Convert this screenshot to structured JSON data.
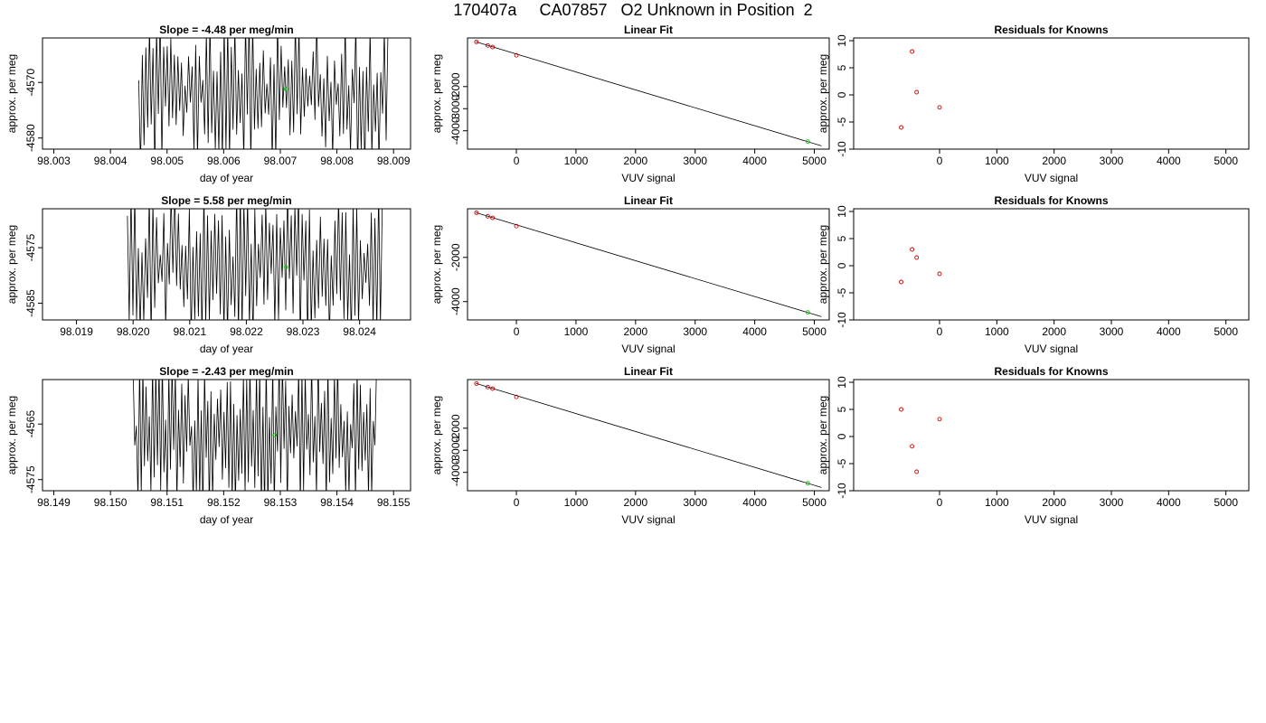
{
  "page_title": "170407a     CA07857   O2 Unknown in Position  2",
  "colors": {
    "known_marker": "#cc0000",
    "unknown_marker": "#00cc00",
    "line": "#000000"
  },
  "chart_data": [
    {
      "type": "line",
      "title": "Slope =  -4.48  per meg/min",
      "xlabel": "day of year",
      "ylabel": "approx. per meg",
      "xlim": [
        98.0028,
        98.0093
      ],
      "ylim": [
        -4582,
        -4562
      ],
      "xticks": [
        98.003,
        98.004,
        98.005,
        98.006,
        98.007,
        98.008,
        98.009
      ],
      "xtick_labels": [
        "98.003",
        "98.004",
        "98.005",
        "98.006",
        "98.007",
        "98.008",
        "98.009"
      ],
      "yticks": [
        -4570,
        -4580
      ],
      "ytick_labels": [
        "-4570",
        "-4580"
      ],
      "trace_start": 98.0045,
      "trace_end": 98.0089,
      "trace_segments": 140,
      "unknown_point": {
        "x": 98.0071,
        "y": -4571.2
      }
    },
    {
      "type": "scatter",
      "title": "Linear Fit",
      "xlabel": "VUV signal",
      "ylabel": "approx. per meg",
      "xlim": [
        -820,
        5250
      ],
      "ylim": [
        -4830,
        200
      ],
      "xticks": [
        0,
        1000,
        2000,
        3000,
        4000,
        5000
      ],
      "xtick_labels": [
        "0",
        "1000",
        "2000",
        "3000",
        "4000",
        "5000"
      ],
      "yticks": [
        -2000,
        -3000,
        -4000
      ],
      "ytick_labels": [
        "-2000",
        "-3000",
        "-4000"
      ],
      "fit_line": {
        "x": [
          -680,
          5120
        ],
        "y": [
          25,
          -4680
        ]
      },
      "knowns": {
        "x": [
          -670,
          -480,
          -400,
          0
        ],
        "y": [
          20,
          -140,
          -210,
          -585
        ]
      },
      "unknown": {
        "x": [
          4890
        ],
        "y": [
          -4490
        ]
      }
    },
    {
      "type": "scatter",
      "title": "Residuals for Knowns",
      "xlabel": "VUV signal",
      "ylabel": "approx. per meg",
      "xlim": [
        -1500,
        5400
      ],
      "ylim": [
        -10,
        10.5
      ],
      "xticks": [
        0,
        1000,
        2000,
        3000,
        4000,
        5000
      ],
      "xtick_labels": [
        "0",
        "1000",
        "2000",
        "3000",
        "4000",
        "5000"
      ],
      "yticks": [
        10,
        5,
        0,
        -5,
        -10
      ],
      "ytick_labels": [
        "10",
        "5",
        "0",
        "-5",
        "-10"
      ],
      "knowns": {
        "x": [
          -670,
          -480,
          -400,
          0
        ],
        "y": [
          -6.0,
          8.0,
          0.5,
          -2.3
        ]
      }
    },
    {
      "type": "line",
      "title": "Slope =  5.58  per meg/min",
      "xlabel": "day of year",
      "ylabel": "approx. per meg",
      "xlim": [
        98.0184,
        98.0249
      ],
      "ylim": [
        -4588,
        -4568
      ],
      "xticks": [
        98.019,
        98.02,
        98.021,
        98.022,
        98.023,
        98.024
      ],
      "xtick_labels": [
        "98.019",
        "98.020",
        "98.021",
        "98.022",
        "98.023",
        "98.024"
      ],
      "yticks": [
        -4575,
        -4585
      ],
      "ytick_labels": [
        "-4575",
        "-4585"
      ],
      "trace_start": 98.0199,
      "trace_end": 98.0244,
      "trace_segments": 140,
      "unknown_point": {
        "x": 98.0227,
        "y": -4578.5
      }
    },
    {
      "type": "scatter",
      "title": "Linear Fit",
      "xlabel": "VUV signal",
      "ylabel": "approx. per meg",
      "xlim": [
        -820,
        5250
      ],
      "ylim": [
        -4830,
        200
      ],
      "xticks": [
        0,
        1000,
        2000,
        3000,
        4000,
        5000
      ],
      "xtick_labels": [
        "0",
        "1000",
        "2000",
        "3000",
        "4000",
        "5000"
      ],
      "yticks": [
        -2000,
        -4000
      ],
      "ytick_labels": [
        "-2000",
        "-4000"
      ],
      "fit_line": {
        "x": [
          -680,
          5120
        ],
        "y": [
          25,
          -4680
        ]
      },
      "knowns": {
        "x": [
          -670,
          -480,
          -400,
          0
        ],
        "y": [
          20,
          -140,
          -210,
          -585
        ]
      },
      "unknown": {
        "x": [
          4890
        ],
        "y": [
          -4490
        ]
      }
    },
    {
      "type": "scatter",
      "title": "Residuals for Knowns",
      "xlabel": "VUV signal",
      "ylabel": "approx. per meg",
      "xlim": [
        -1500,
        5400
      ],
      "ylim": [
        -10,
        10.5
      ],
      "xticks": [
        0,
        1000,
        2000,
        3000,
        4000,
        5000
      ],
      "xtick_labels": [
        "0",
        "1000",
        "2000",
        "3000",
        "4000",
        "5000"
      ],
      "yticks": [
        10,
        5,
        0,
        -5,
        -10
      ],
      "ytick_labels": [
        "10",
        "5",
        "0",
        "-5",
        "-10"
      ],
      "knowns": {
        "x": [
          -670,
          -480,
          -400,
          0
        ],
        "y": [
          -3.0,
          3.0,
          1.5,
          -1.5
        ]
      }
    },
    {
      "type": "line",
      "title": "Slope =  -2.43  per meg/min",
      "xlabel": "day of year",
      "ylabel": "approx. per meg",
      "xlim": [
        98.1488,
        98.1553
      ],
      "ylim": [
        -4577,
        -4557
      ],
      "xticks": [
        98.149,
        98.15,
        98.151,
        98.152,
        98.153,
        98.154,
        98.155
      ],
      "xtick_labels": [
        "98.149",
        "98.150",
        "98.151",
        "98.152",
        "98.153",
        "98.154",
        "98.155"
      ],
      "yticks": [
        -4565,
        -4575
      ],
      "ytick_labels": [
        "-4565",
        "-4575"
      ],
      "trace_start": 98.1504,
      "trace_end": 98.1547,
      "trace_segments": 150,
      "unknown_point": {
        "x": 98.1529,
        "y": -4567.0
      }
    },
    {
      "type": "scatter",
      "title": "Linear Fit",
      "xlabel": "VUV signal",
      "ylabel": "approx. per meg",
      "xlim": [
        -820,
        5250
      ],
      "ylim": [
        -4830,
        200
      ],
      "xticks": [
        0,
        1000,
        2000,
        3000,
        4000,
        5000
      ],
      "xtick_labels": [
        "0",
        "1000",
        "2000",
        "3000",
        "4000",
        "5000"
      ],
      "yticks": [
        -2000,
        -3000,
        -4000
      ],
      "ytick_labels": [
        "-2000",
        "-3000",
        "-4000"
      ],
      "fit_line": {
        "x": [
          -680,
          5120
        ],
        "y": [
          25,
          -4680
        ]
      },
      "knowns": {
        "x": [
          -670,
          -480,
          -400,
          0
        ],
        "y": [
          20,
          -140,
          -210,
          -585
        ]
      },
      "unknown": {
        "x": [
          4890
        ],
        "y": [
          -4490
        ]
      }
    },
    {
      "type": "scatter",
      "title": "Residuals for Knowns",
      "xlabel": "VUV signal",
      "ylabel": "approx. per meg",
      "xlim": [
        -1500,
        5400
      ],
      "ylim": [
        -10,
        10.5
      ],
      "xticks": [
        0,
        1000,
        2000,
        3000,
        4000,
        5000
      ],
      "xtick_labels": [
        "0",
        "1000",
        "2000",
        "3000",
        "4000",
        "5000"
      ],
      "yticks": [
        10,
        5,
        0,
        -5,
        -10
      ],
      "ytick_labels": [
        "10",
        "5",
        "0",
        "-5",
        "-10"
      ],
      "knowns": {
        "x": [
          -670,
          -480,
          -400,
          0
        ],
        "y": [
          5.0,
          -1.8,
          -6.5,
          3.2
        ]
      }
    }
  ]
}
